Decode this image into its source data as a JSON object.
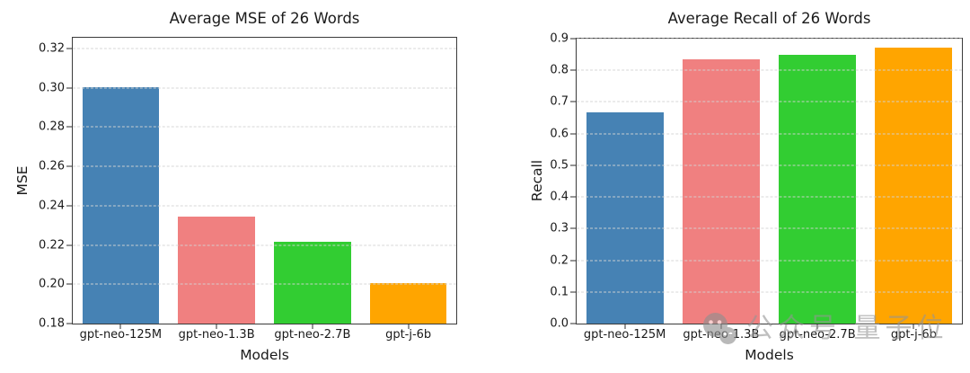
{
  "page": {
    "background": "#ffffff"
  },
  "watermark": {
    "text": "公众号 量子位",
    "icon": "wechat-logo-icon",
    "color": "#949494"
  },
  "chart_data": [
    {
      "type": "bar",
      "title": "Average MSE of 26 Words",
      "xlabel": "Models",
      "ylabel": "MSE",
      "categories": [
        "gpt-neo-125M",
        "gpt-neo-1.3B",
        "gpt-neo-2.7B",
        "gpt-j-6b"
      ],
      "values": [
        0.3005,
        0.2345,
        0.2215,
        0.2005
      ],
      "bar_colors": [
        "#4682B4",
        "#F08080",
        "#32CD32",
        "#FFA500"
      ],
      "ylim": [
        0.18,
        0.3255
      ],
      "yticks": [
        0.18,
        0.2,
        0.22,
        0.24,
        0.26,
        0.28,
        0.3,
        0.32
      ],
      "ytick_labels": [
        "0.18",
        "0.20",
        "0.22",
        "0.24",
        "0.26",
        "0.28",
        "0.30",
        "0.32"
      ],
      "grid": "horizontal-dashed",
      "legend": null
    },
    {
      "type": "bar",
      "title": "Average Recall of 26 Words",
      "xlabel": "Models",
      "ylabel": "Recall",
      "categories": [
        "gpt-neo-125M",
        "gpt-neo-1.3B",
        "gpt-neo-2.7B",
        "gpt-j-6b"
      ],
      "values": [
        0.667,
        0.834,
        0.85,
        0.872
      ],
      "bar_colors": [
        "#4682B4",
        "#F08080",
        "#32CD32",
        "#FFA500"
      ],
      "ylim": [
        0.0,
        0.9
      ],
      "yticks": [
        0.0,
        0.1,
        0.2,
        0.3,
        0.4,
        0.5,
        0.6,
        0.7,
        0.8,
        0.9
      ],
      "ytick_labels": [
        "0.0",
        "0.1",
        "0.2",
        "0.3",
        "0.4",
        "0.5",
        "0.6",
        "0.7",
        "0.8",
        "0.9"
      ],
      "grid": "horizontal-dashed",
      "legend": null
    }
  ]
}
